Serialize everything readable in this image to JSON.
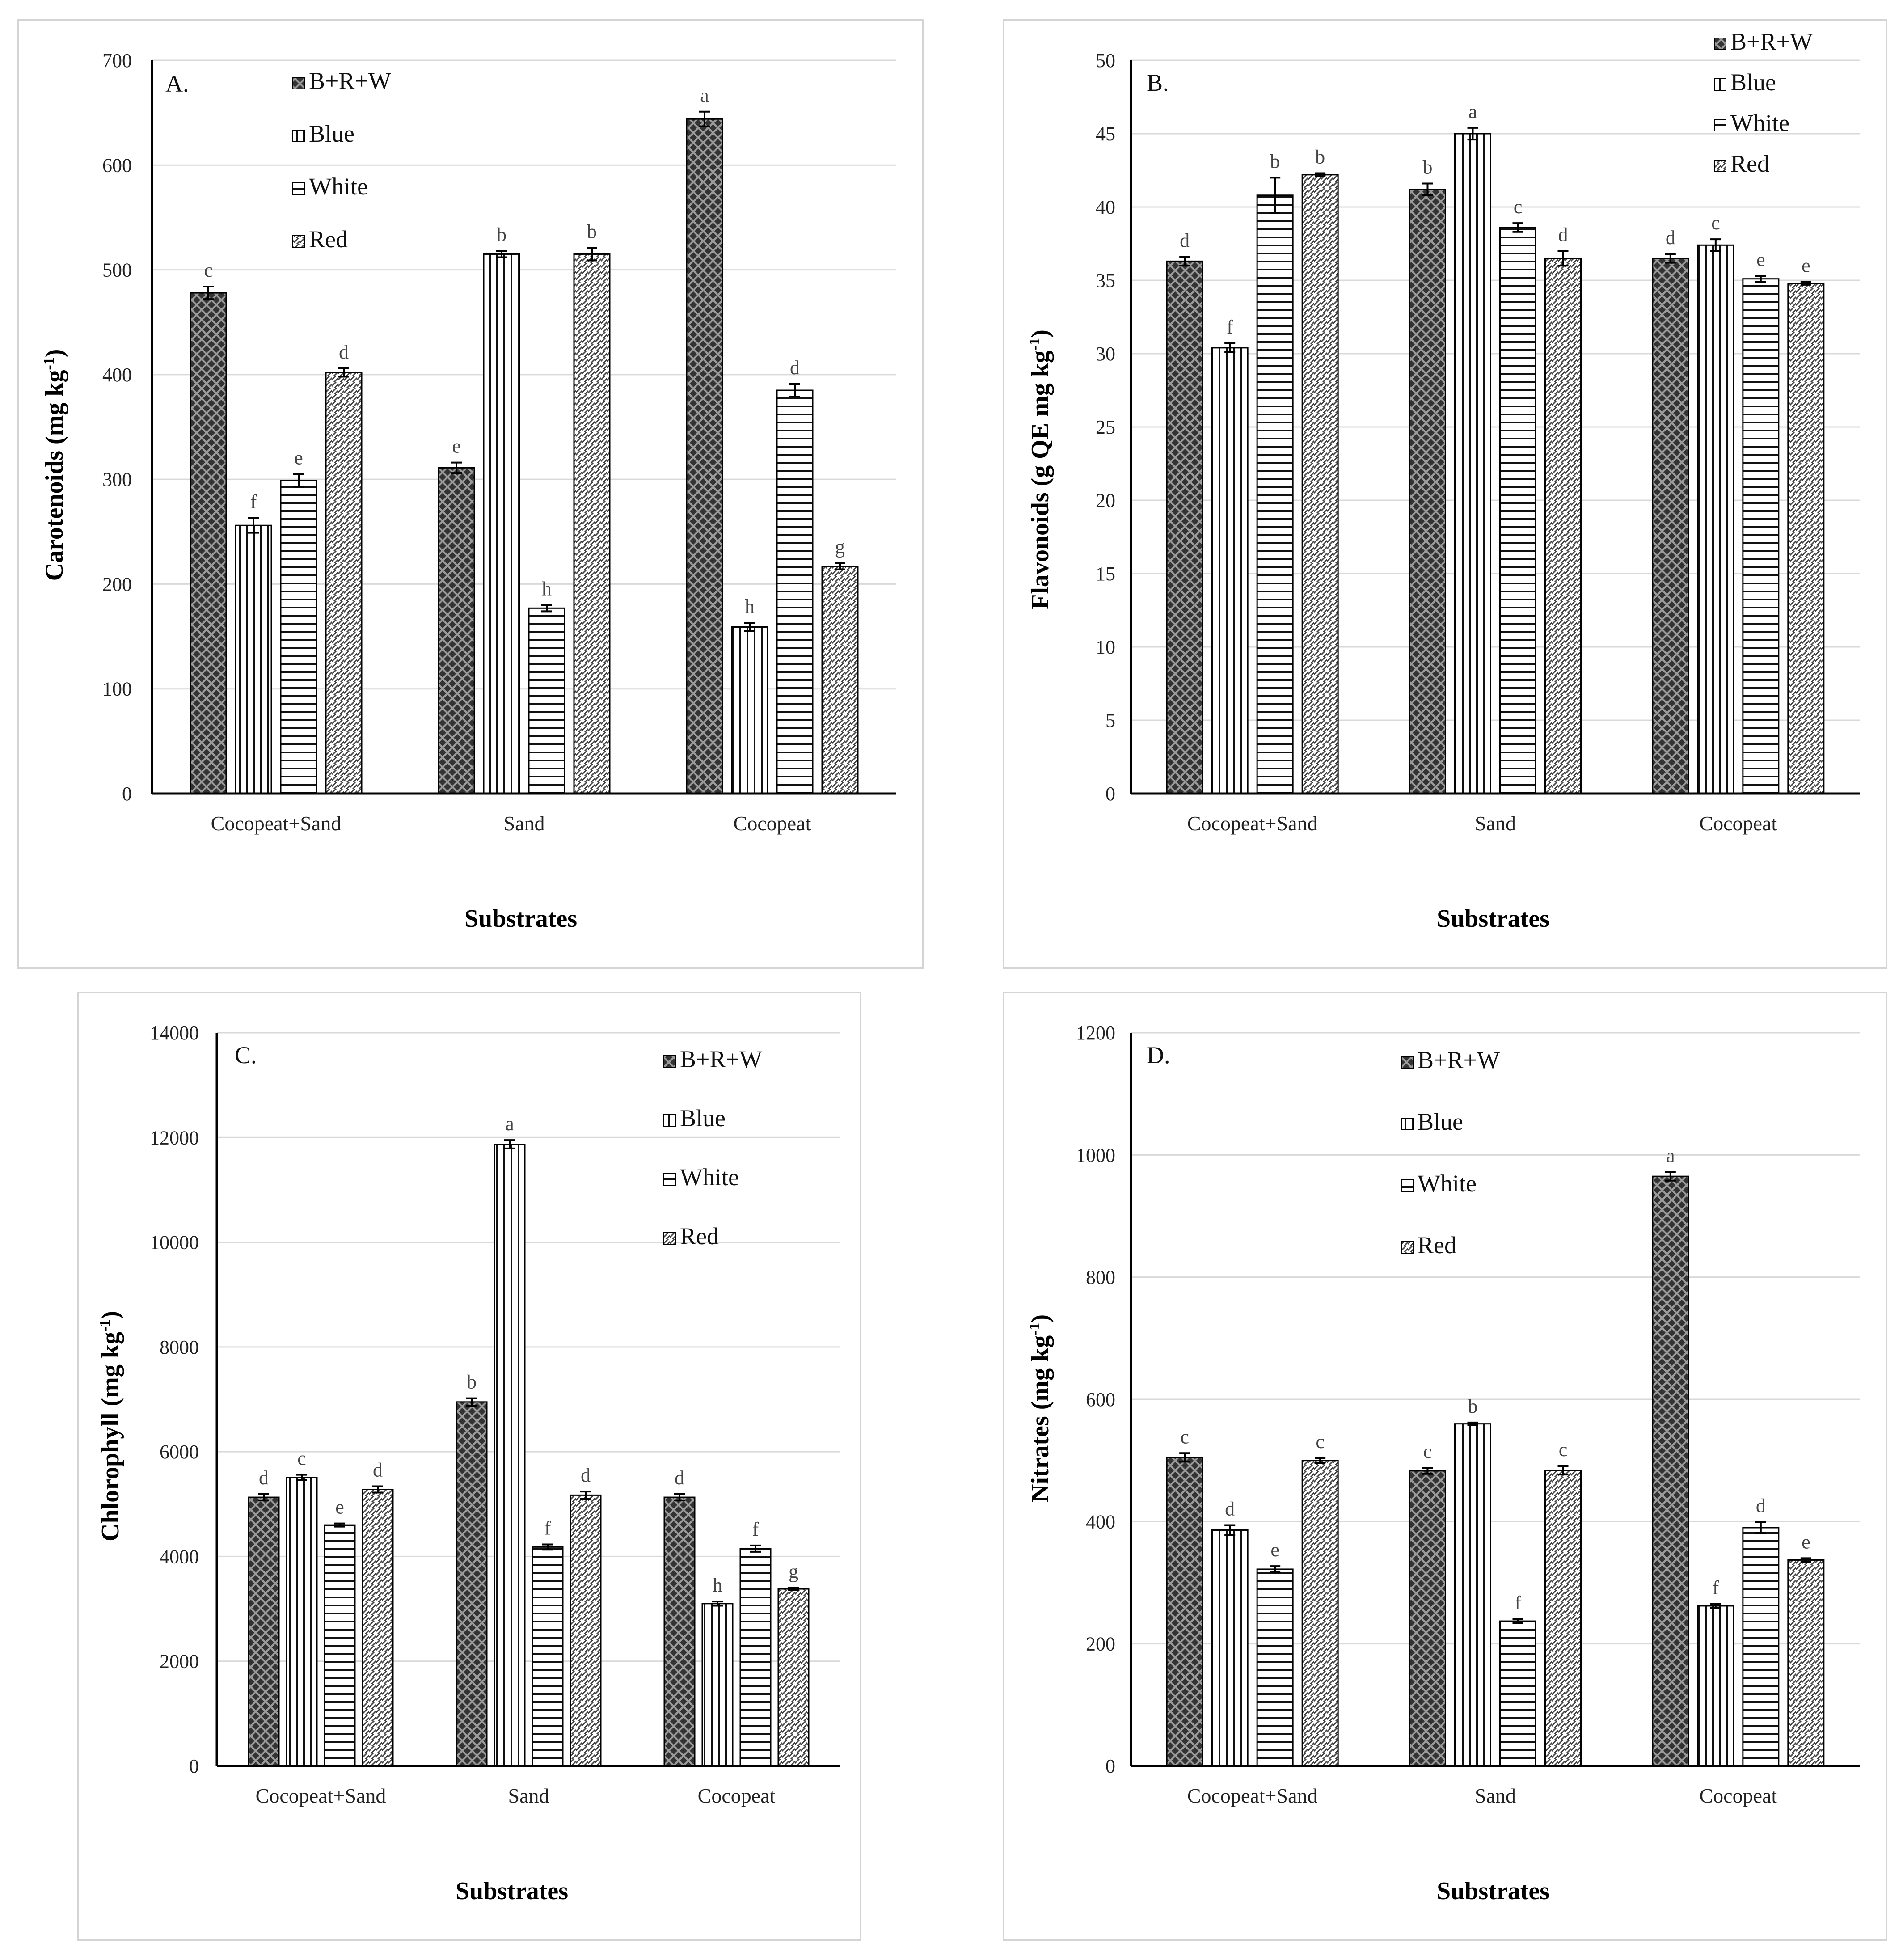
{
  "chart_data": [
    {
      "type": "bar",
      "panel_label": "A.",
      "categories": [
        "Cocopeat+Sand",
        "Sand",
        "Cocopeat"
      ],
      "xlabel": "Substrates",
      "ylabel": "Carotenoids (mg kg",
      "ylabel_sup": "-1",
      "ylabel_end": ")",
      "ylim": [
        0,
        700
      ],
      "yticks": [
        0,
        100,
        200,
        300,
        400,
        500,
        600,
        700
      ],
      "grid": true,
      "legend_position": "top-left",
      "series": [
        {
          "name": "B+R+W",
          "values": [
            478,
            311,
            644
          ],
          "errors": [
            6,
            5,
            7
          ],
          "letters": [
            "c",
            "e",
            "a"
          ]
        },
        {
          "name": "Blue",
          "values": [
            256,
            515,
            159
          ],
          "errors": [
            7,
            3,
            4
          ],
          "letters": [
            "f",
            "b",
            "h"
          ]
        },
        {
          "name": "White",
          "values": [
            299,
            177,
            385
          ],
          "errors": [
            6,
            3,
            6
          ],
          "letters": [
            "e",
            "h",
            "d"
          ]
        },
        {
          "name": "Red",
          "values": [
            402,
            515,
            217
          ],
          "errors": [
            4,
            6,
            3
          ],
          "letters": [
            "d",
            "b",
            "g"
          ]
        }
      ]
    },
    {
      "type": "bar",
      "panel_label": "B.",
      "categories": [
        "Cocopeat+Sand",
        "Sand",
        "Cocopeat"
      ],
      "xlabel": "Substrates",
      "ylabel": "Flavonoids (g QE mg kg",
      "ylabel_sup": "-1",
      "ylabel_end": ")",
      "ylim": [
        0,
        50
      ],
      "yticks": [
        0,
        5,
        10,
        15,
        20,
        25,
        30,
        35,
        40,
        45,
        50
      ],
      "grid": true,
      "legend_position": "top-right",
      "series": [
        {
          "name": "B+R+W",
          "values": [
            36.3,
            41.2,
            36.5
          ],
          "errors": [
            0.3,
            0.4,
            0.3
          ],
          "letters": [
            "d",
            "b",
            "d"
          ]
        },
        {
          "name": "Blue",
          "values": [
            30.4,
            45.0,
            37.4
          ],
          "errors": [
            0.3,
            0.4,
            0.4
          ],
          "letters": [
            "f",
            "a",
            "c"
          ]
        },
        {
          "name": "White",
          "values": [
            40.8,
            38.6,
            35.1
          ],
          "errors": [
            1.2,
            0.3,
            0.2
          ],
          "letters": [
            "b",
            "c",
            "e"
          ]
        },
        {
          "name": "Red",
          "values": [
            42.2,
            36.5,
            34.8
          ],
          "errors": [
            0.1,
            0.5,
            0.1
          ],
          "letters": [
            "b",
            "d",
            "e"
          ]
        }
      ]
    },
    {
      "type": "bar",
      "panel_label": "C.",
      "categories": [
        "Cocopeat+Sand",
        "Sand",
        "Cocopeat"
      ],
      "xlabel": "Substrates",
      "ylabel": "Chlorophyll (mg kg",
      "ylabel_sup": "-1",
      "ylabel_end": ")",
      "ylim": [
        0,
        14000
      ],
      "yticks": [
        0,
        2000,
        4000,
        6000,
        8000,
        10000,
        12000,
        14000
      ],
      "grid": true,
      "legend_position": "top-right",
      "series": [
        {
          "name": "B+R+W",
          "values": [
            5130,
            6950,
            5130
          ],
          "errors": [
            60,
            70,
            60
          ],
          "letters": [
            "d",
            "b",
            "d"
          ]
        },
        {
          "name": "Blue",
          "values": [
            5510,
            11870,
            3100
          ],
          "errors": [
            50,
            80,
            40
          ],
          "letters": [
            "c",
            "a",
            "h"
          ]
        },
        {
          "name": "White",
          "values": [
            4600,
            4180,
            4150
          ],
          "errors": [
            30,
            50,
            60
          ],
          "letters": [
            "e",
            "f",
            "f"
          ]
        },
        {
          "name": "Red",
          "values": [
            5280,
            5170,
            3380
          ],
          "errors": [
            60,
            70,
            20
          ],
          "letters": [
            "d",
            "d",
            "g"
          ]
        }
      ]
    },
    {
      "type": "bar",
      "panel_label": "D.",
      "categories": [
        "Cocopeat+Sand",
        "Sand",
        "Cocopeat"
      ],
      "xlabel": "Substrates",
      "ylabel": "Nitrates (mg kg",
      "ylabel_sup": "-1",
      "ylabel_end": ")",
      "ylim": [
        0,
        1200
      ],
      "yticks": [
        0,
        200,
        400,
        600,
        800,
        1000,
        1200
      ],
      "grid": true,
      "legend_position": "top-left",
      "series": [
        {
          "name": "B+R+W",
          "values": [
            505,
            483,
            965
          ],
          "errors": [
            7,
            5,
            7
          ],
          "letters": [
            "c",
            "c",
            "a"
          ]
        },
        {
          "name": "Blue",
          "values": [
            386,
            560,
            262
          ],
          "errors": [
            8,
            2,
            3
          ],
          "letters": [
            "d",
            "b",
            "f"
          ]
        },
        {
          "name": "White",
          "values": [
            322,
            237,
            390
          ],
          "errors": [
            5,
            3,
            9
          ],
          "letters": [
            "e",
            "f",
            "d"
          ]
        },
        {
          "name": "Red",
          "values": [
            500,
            484,
            337
          ],
          "errors": [
            4,
            7,
            3
          ],
          "letters": [
            "c",
            "c",
            "e"
          ]
        }
      ]
    }
  ]
}
